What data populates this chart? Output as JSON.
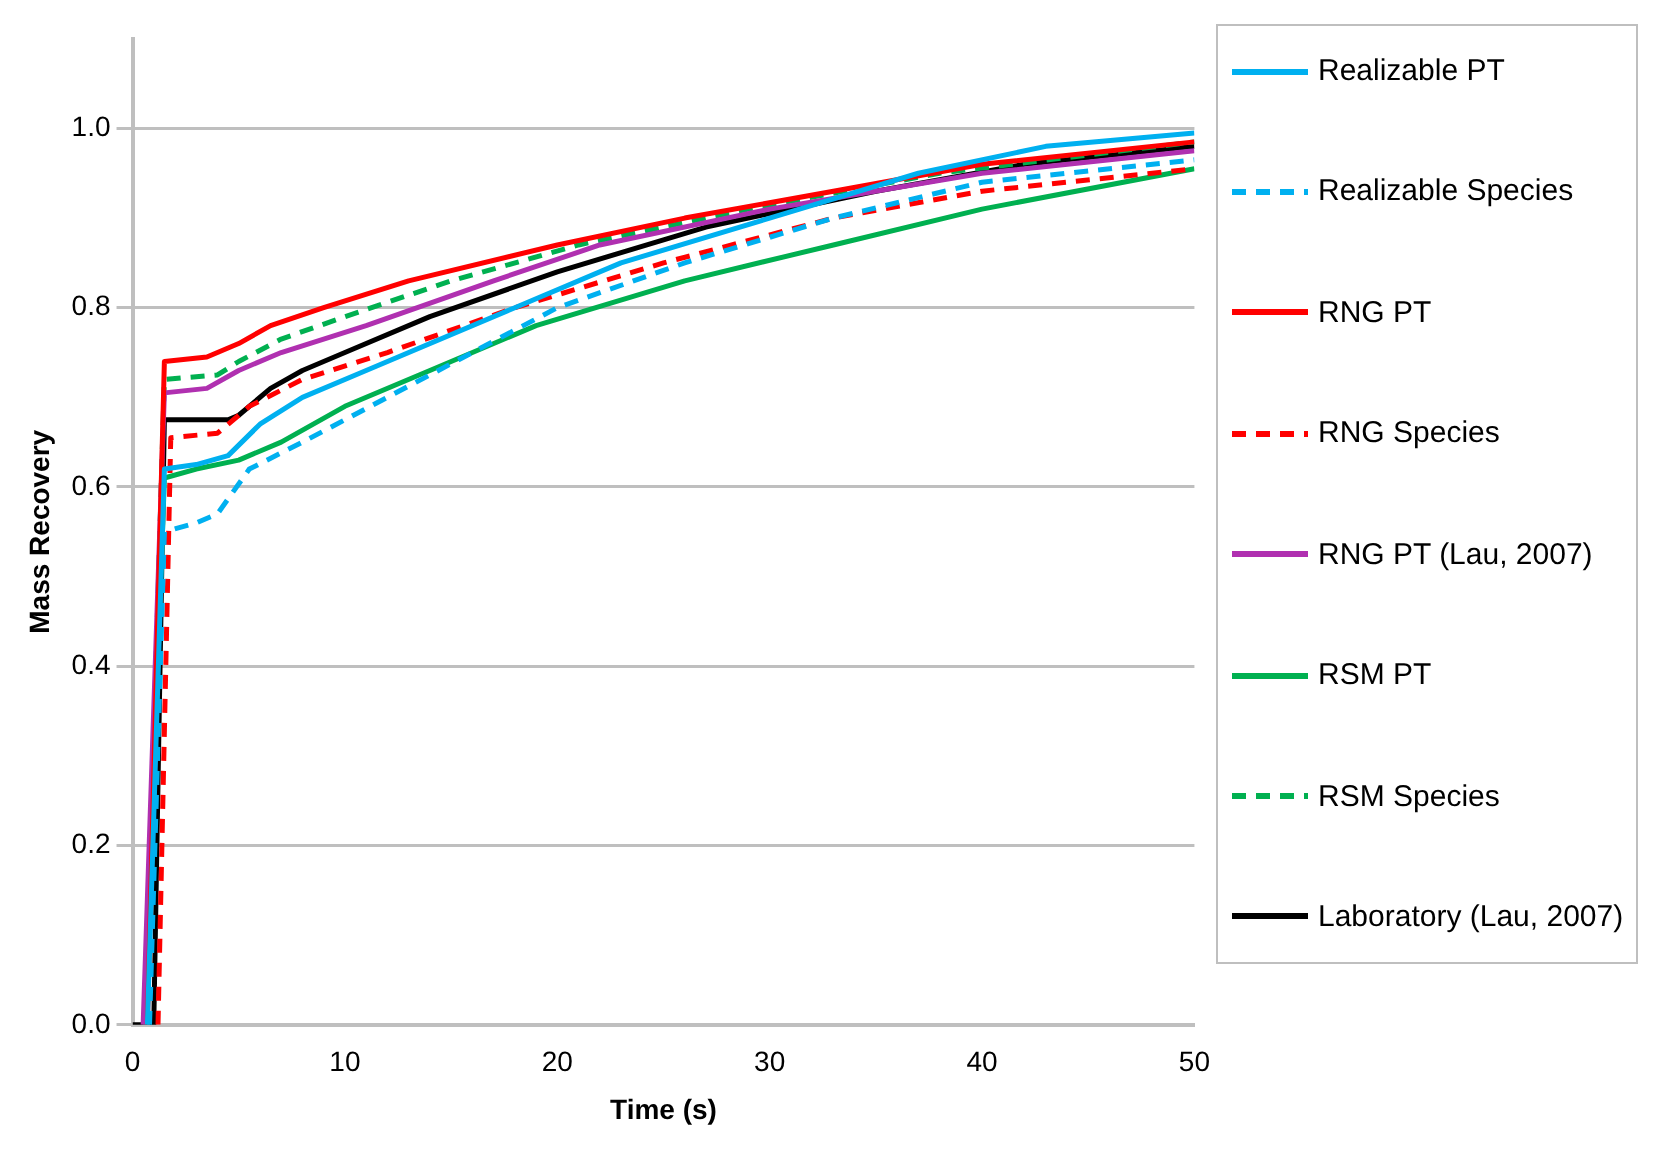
{
  "chart_data": {
    "type": "line",
    "xlabel": "Time (s)",
    "ylabel": "Mass Recovery",
    "xlim": [
      0,
      50
    ],
    "ylim": [
      0,
      1.1
    ],
    "xticks": [
      0,
      10,
      20,
      30,
      40,
      50
    ],
    "yticks": [
      {
        "value": 0,
        "label": "0.0"
      },
      {
        "value": 0.2,
        "label": "0.2"
      },
      {
        "value": 0.4,
        "label": "0.4"
      },
      {
        "value": 0.6,
        "label": "0.6"
      },
      {
        "value": 0.8,
        "label": "0.8"
      },
      {
        "value": 1,
        "label": "1.0"
      }
    ],
    "grid": "y",
    "legend": "right",
    "marker": "none",
    "series": [
      {
        "name": "Realizable PT",
        "color": "#00b0f0",
        "line_style": "solid",
        "x": [
          0.7,
          1.5,
          3,
          4.5,
          6,
          8,
          11,
          18,
          23,
          30,
          37,
          43,
          50
        ],
        "values": [
          0,
          0.62,
          0.625,
          0.635,
          0.67,
          0.7,
          0.73,
          0.8,
          0.85,
          0.9,
          0.95,
          0.98,
          0.995
        ]
      },
      {
        "name": "Realizable Species",
        "color": "#00b0f0",
        "line_style": "dashed",
        "x": [
          0.8,
          1.5,
          3,
          4,
          5.5,
          8,
          12,
          16,
          20,
          26,
          33,
          40,
          50
        ],
        "values": [
          0,
          0.55,
          0.56,
          0.57,
          0.62,
          0.65,
          0.7,
          0.75,
          0.8,
          0.85,
          0.9,
          0.94,
          0.965
        ]
      },
      {
        "name": "RNG PT",
        "color": "#ff0000",
        "line_style": "solid",
        "x": [
          0.7,
          1.5,
          3.5,
          5,
          6.5,
          9,
          13,
          20,
          26,
          33,
          40,
          50
        ],
        "values": [
          0,
          0.74,
          0.745,
          0.76,
          0.78,
          0.8,
          0.83,
          0.87,
          0.9,
          0.93,
          0.96,
          0.985
        ]
      },
      {
        "name": "RNG Species",
        "color": "#ff0000",
        "line_style": "dashed",
        "x": [
          1.2,
          1.8,
          4,
          5.5,
          8,
          12,
          18,
          25,
          33,
          40,
          50
        ],
        "values": [
          0,
          0.655,
          0.66,
          0.69,
          0.72,
          0.75,
          0.8,
          0.85,
          0.9,
          0.93,
          0.955
        ]
      },
      {
        "name": "RNG PT (Lau, 2007)",
        "color": "#b030b0",
        "line_style": "solid",
        "x": [
          0.5,
          1.5,
          3.5,
          5,
          7,
          11,
          17,
          22,
          30,
          40,
          50
        ],
        "values": [
          0,
          0.705,
          0.71,
          0.73,
          0.75,
          0.78,
          0.83,
          0.87,
          0.91,
          0.95,
          0.975
        ]
      },
      {
        "name": "RSM PT",
        "color": "#00b050",
        "line_style": "solid",
        "x": [
          0.6,
          1.5,
          3,
          5,
          7,
          10,
          14,
          19,
          26,
          33,
          40,
          50
        ],
        "values": [
          0,
          0.61,
          0.62,
          0.63,
          0.65,
          0.69,
          0.73,
          0.78,
          0.83,
          0.87,
          0.91,
          0.955
        ]
      },
      {
        "name": "RSM Species",
        "color": "#00b050",
        "line_style": "dashed",
        "x": [
          0.6,
          1.5,
          4,
          5,
          7,
          10,
          15,
          21,
          29,
          38,
          50
        ],
        "values": [
          0,
          0.72,
          0.725,
          0.74,
          0.765,
          0.79,
          0.83,
          0.87,
          0.91,
          0.95,
          0.985
        ]
      },
      {
        "name": "Laboratory (Lau, 2007)",
        "color": "#000000",
        "line_style": "solid",
        "x": [
          0,
          1,
          1.5,
          4.5,
          5,
          6.5,
          8,
          10,
          14,
          20,
          27,
          35,
          42,
          50
        ],
        "values": [
          0,
          0,
          0.675,
          0.675,
          0.68,
          0.71,
          0.73,
          0.75,
          0.79,
          0.84,
          0.89,
          0.93,
          0.96,
          0.98
        ]
      }
    ]
  }
}
